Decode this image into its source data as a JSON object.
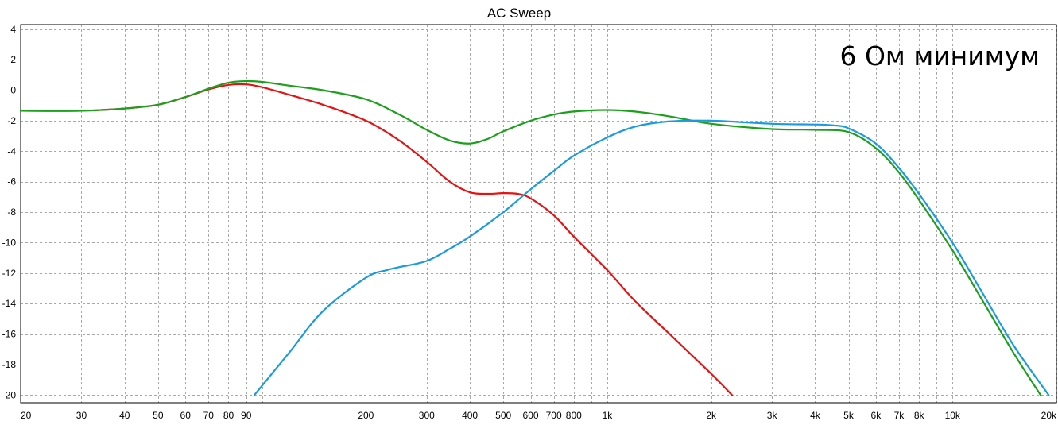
{
  "chart_data": {
    "type": "line",
    "title": "AC Sweep",
    "annotation": "6 Ом минимум",
    "xscale": "log",
    "xlim": [
      20,
      20000
    ],
    "ylim": [
      -20.5,
      4.3
    ],
    "grid": true,
    "x_ticks": [
      {
        "v": 20,
        "label": "20"
      },
      {
        "v": 30,
        "label": "30"
      },
      {
        "v": 40,
        "label": "40"
      },
      {
        "v": 50,
        "label": "50"
      },
      {
        "v": 60,
        "label": "60"
      },
      {
        "v": 70,
        "label": "70"
      },
      {
        "v": 80,
        "label": "80"
      },
      {
        "v": 90,
        "label": "90"
      },
      {
        "v": 100,
        "label": ""
      },
      {
        "v": 200,
        "label": "200"
      },
      {
        "v": 300,
        "label": "300"
      },
      {
        "v": 400,
        "label": "400"
      },
      {
        "v": 500,
        "label": "500"
      },
      {
        "v": 600,
        "label": "600"
      },
      {
        "v": 700,
        "label": "700"
      },
      {
        "v": 800,
        "label": "800"
      },
      {
        "v": 900,
        "label": ""
      },
      {
        "v": 1000,
        "label": "1k"
      },
      {
        "v": 2000,
        "label": "2k"
      },
      {
        "v": 3000,
        "label": "3k"
      },
      {
        "v": 4000,
        "label": "4k"
      },
      {
        "v": 5000,
        "label": "5k"
      },
      {
        "v": 6000,
        "label": "6k"
      },
      {
        "v": 7000,
        "label": "7k"
      },
      {
        "v": 8000,
        "label": "8k"
      },
      {
        "v": 9000,
        "label": ""
      },
      {
        "v": 10000,
        "label": "10k"
      },
      {
        "v": 20000,
        "label": "20k"
      }
    ],
    "y_ticks": [
      4,
      2,
      0,
      -2,
      -4,
      -6,
      -8,
      -10,
      -12,
      -14,
      -16,
      -18,
      -20
    ],
    "series": [
      {
        "color": "#e81010",
        "x": [
          20,
          30,
          40,
          50,
          60,
          70,
          80,
          90,
          100,
          120,
          150,
          200,
          250,
          300,
          350,
          400,
          450,
          500,
          550,
          600,
          700,
          800,
          1000,
          1200,
          1500,
          2000,
          2300
        ],
        "y": [
          -1.35,
          -1.35,
          -1.2,
          -0.95,
          -0.45,
          0.05,
          0.35,
          0.38,
          0.2,
          -0.3,
          -0.95,
          -2.0,
          -3.3,
          -4.7,
          -6.0,
          -6.7,
          -6.8,
          -6.75,
          -6.8,
          -7.1,
          -8.2,
          -9.6,
          -11.8,
          -13.8,
          -15.9,
          -18.6,
          -20.0
        ]
      },
      {
        "color": "#1ca01c",
        "x": [
          20,
          30,
          40,
          50,
          60,
          70,
          80,
          90,
          100,
          120,
          150,
          200,
          250,
          300,
          350,
          400,
          450,
          500,
          600,
          700,
          800,
          1000,
          1200,
          1500,
          2000,
          3000,
          4000,
          5000,
          6000,
          7000,
          8000,
          10000,
          12000,
          15000,
          18000
        ],
        "y": [
          -1.35,
          -1.35,
          -1.2,
          -0.95,
          -0.45,
          0.1,
          0.5,
          0.6,
          0.55,
          0.3,
          0.0,
          -0.6,
          -1.6,
          -2.6,
          -3.3,
          -3.5,
          -3.2,
          -2.7,
          -2.0,
          -1.6,
          -1.4,
          -1.3,
          -1.4,
          -1.7,
          -2.2,
          -2.55,
          -2.6,
          -2.75,
          -3.8,
          -5.4,
          -7.2,
          -10.5,
          -13.5,
          -17.2,
          -20.0
        ]
      },
      {
        "color": "#1a9be0",
        "x": [
          95,
          120,
          150,
          200,
          230,
          250,
          300,
          350,
          400,
          500,
          600,
          700,
          800,
          1000,
          1200,
          1500,
          2000,
          3000,
          4000,
          4500,
          5000,
          6000,
          7000,
          8000,
          10000,
          12000,
          15000,
          19000
        ],
        "y": [
          -20.0,
          -17.2,
          -14.5,
          -12.3,
          -11.8,
          -11.6,
          -11.2,
          -10.4,
          -9.6,
          -8.0,
          -6.5,
          -5.3,
          -4.3,
          -3.1,
          -2.4,
          -2.05,
          -2.0,
          -2.2,
          -2.25,
          -2.3,
          -2.5,
          -3.5,
          -5.1,
          -6.8,
          -10.0,
          -13.0,
          -16.7,
          -20.0
        ]
      }
    ]
  }
}
